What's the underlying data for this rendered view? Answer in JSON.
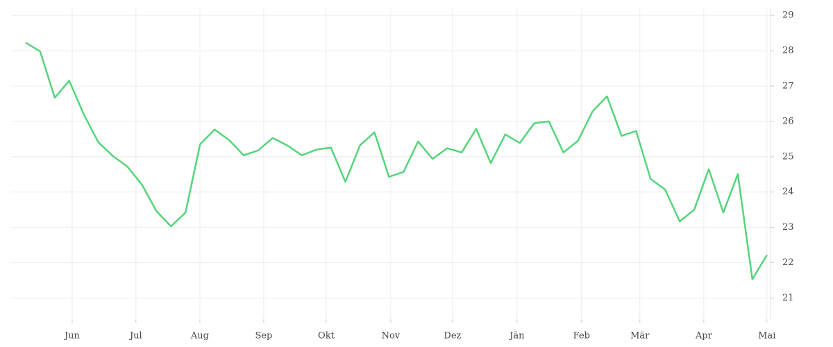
{
  "chart_data": {
    "type": "line",
    "x": [
      0,
      1,
      2,
      3,
      4,
      5,
      6,
      7,
      8,
      9,
      10,
      11,
      12,
      13,
      14,
      15,
      16,
      17,
      18,
      19,
      20,
      21,
      22,
      23,
      24,
      25,
      26,
      27,
      28,
      29,
      30,
      31,
      32,
      33,
      34,
      35,
      36,
      37,
      38,
      39,
      40,
      41,
      42,
      43,
      44,
      45,
      46,
      47,
      48,
      49,
      50,
      51
    ],
    "series": [
      {
        "color": "#55d47c",
        "values": [
          28.23,
          27.98,
          26.67,
          27.15,
          26.2,
          25.41,
          25.02,
          24.72,
          24.21,
          23.46,
          23.03,
          23.42,
          25.35,
          25.77,
          25.47,
          25.04,
          25.18,
          25.53,
          25.32,
          25.04,
          25.2,
          25.26,
          24.29,
          25.32,
          25.69,
          24.43,
          24.57,
          25.43,
          24.94,
          25.24,
          25.12,
          25.79,
          24.82,
          25.63,
          25.39,
          25.95,
          26.0,
          25.12,
          25.45,
          26.28,
          26.71,
          25.59,
          25.73,
          24.37,
          24.07,
          23.17,
          23.5,
          24.65,
          23.42,
          24.51,
          21.53,
          22.22
        ]
      }
    ],
    "xlim": [
      -1,
      51.25
    ],
    "xticks": [
      {
        "value": 3.2,
        "label": "Jun"
      },
      {
        "value": 7.59,
        "label": "Jul"
      },
      {
        "value": 11.99,
        "label": "Aug"
      },
      {
        "value": 16.38,
        "label": "Sep"
      },
      {
        "value": 20.68,
        "label": "Okt"
      },
      {
        "value": 25.12,
        "label": "Nov"
      },
      {
        "value": 29.37,
        "label": "Dez"
      },
      {
        "value": 33.81,
        "label": "Jän"
      },
      {
        "value": 38.25,
        "label": "Feb"
      },
      {
        "value": 42.26,
        "label": "Mär"
      },
      {
        "value": 46.66,
        "label": "Apr"
      },
      {
        "value": 51.0,
        "label": "Mai"
      }
    ],
    "ylim": [
      20.4,
      29.2
    ],
    "yticks": [
      21,
      22,
      23,
      24,
      25,
      26,
      27,
      28,
      29
    ],
    "grid": true
  }
}
